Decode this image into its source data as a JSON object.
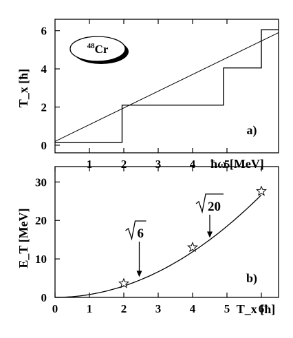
{
  "chart_data": [
    {
      "type": "line",
      "panel_label": "a)",
      "badge": {
        "mass": "48",
        "element": "Cr"
      },
      "xlabel": "ħω [MeV]",
      "ylabel": "T_x [ħ]",
      "xlim": [
        0,
        6.5
      ],
      "ylim": [
        -0.4,
        6.6
      ],
      "x_ticks": [
        1,
        2,
        3,
        4,
        5
      ],
      "y_ticks": [
        0,
        2,
        4,
        6
      ],
      "series": [
        {
          "style": "step",
          "points": [
            [
              0,
              0.15
            ],
            [
              1.95,
              0.15
            ],
            [
              1.95,
              2.1
            ],
            [
              4.9,
              2.1
            ],
            [
              4.9,
              4.05
            ],
            [
              6.0,
              4.05
            ],
            [
              6.0,
              6.05
            ],
            [
              6.5,
              6.05
            ]
          ]
        },
        {
          "style": "linear",
          "points": [
            [
              0,
              0.2
            ],
            [
              6.5,
              5.9
            ]
          ]
        }
      ]
    },
    {
      "type": "line",
      "panel_label": "b)",
      "xlabel": "T_x [ħ]",
      "ylabel": "E_T [MeV]",
      "xlim": [
        0,
        6.5
      ],
      "ylim": [
        0,
        34
      ],
      "x_ticks": [
        0,
        1,
        2,
        3,
        4,
        5,
        6
      ],
      "y_ticks": [
        0,
        10,
        20,
        30
      ],
      "curve": {
        "function": "0.74 * x^2",
        "x_range": [
          0,
          6
        ]
      },
      "markers": [
        {
          "x": 2,
          "y": 3.6
        },
        {
          "x": 4,
          "y": 13.0
        },
        {
          "x": 6,
          "y": 27.6
        }
      ],
      "annotations": [
        {
          "radicand": "6",
          "arrow_x": 2.45,
          "arrow_from_y": 14.5,
          "arrow_to_y": 5.3
        },
        {
          "radicand": "20",
          "arrow_x": 4.5,
          "arrow_from_y": 21.5,
          "arrow_to_y": 15.5
        }
      ]
    }
  ]
}
